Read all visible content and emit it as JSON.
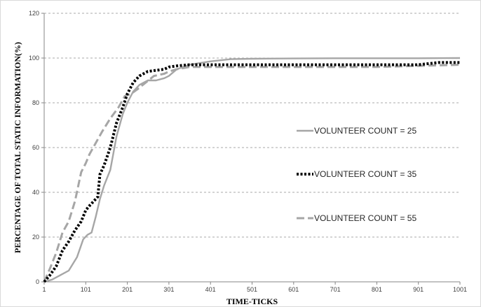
{
  "chart_data": {
    "type": "line",
    "xlabel": "TIME-TICKS",
    "ylabel": "PERCENTAGE OF TOTAL STATIC INFORMATION(%)",
    "xlim": [
      1,
      1001
    ],
    "ylim": [
      0,
      120
    ],
    "x_ticks": [
      1,
      101,
      201,
      301,
      401,
      501,
      601,
      701,
      801,
      901,
      1001
    ],
    "y_ticks": [
      0,
      20,
      40,
      60,
      80,
      100,
      120
    ],
    "grid": "horizontal dashed",
    "legend_placement": "right",
    "series": [
      {
        "name": "VOLUNTEER COUNT = 25",
        "style": "solid",
        "color": "#a6a6a6",
        "x": [
          1,
          20,
          40,
          60,
          80,
          95,
          105,
          115,
          125,
          135,
          145,
          160,
          175,
          190,
          201,
          215,
          230,
          250,
          270,
          290,
          301,
          320,
          350,
          400,
          450,
          500,
          600,
          700,
          800,
          900,
          1001
        ],
        "y": [
          0,
          1,
          3,
          5,
          11,
          19,
          21,
          22,
          29,
          37,
          43,
          50,
          65,
          75,
          80,
          85,
          88,
          90,
          90,
          91,
          92,
          95,
          97,
          98.5,
          99.5,
          99.7,
          99.8,
          99.9,
          99.9,
          99.9,
          100
        ]
      },
      {
        "name": "VOLUNTEER COUNT = 35",
        "style": "dotted",
        "color": "#000000",
        "x": [
          1,
          15,
          30,
          45,
          60,
          75,
          90,
          101,
          110,
          120,
          130,
          135,
          145,
          160,
          175,
          190,
          201,
          215,
          230,
          250,
          270,
          290,
          301,
          320,
          350,
          400,
          450,
          500,
          600,
          700,
          800,
          900,
          950,
          1001
        ],
        "y": [
          0,
          3,
          7,
          14,
          18,
          23,
          27,
          32,
          34,
          36,
          38,
          48,
          52,
          60,
          71,
          78,
          84,
          89,
          92,
          94,
          94.5,
          95,
          96,
          96.5,
          97,
          97,
          97,
          97,
          97,
          97,
          97,
          97,
          98,
          98
        ]
      },
      {
        "name": "VOLUNTEER COUNT = 55",
        "style": "dashed",
        "color": "#a6a6a6",
        "x": [
          1,
          15,
          30,
          45,
          60,
          75,
          90,
          101,
          110,
          125,
          140,
          160,
          180,
          195,
          210,
          225,
          245,
          265,
          290,
          301,
          320,
          350,
          400,
          450,
          500,
          600,
          700,
          800,
          900,
          1001
        ],
        "y": [
          0,
          6,
          13,
          22,
          27,
          36,
          49,
          53,
          57,
          62,
          67,
          73,
          78,
          83,
          84,
          86,
          89,
          92,
          93,
          94,
          95,
          96,
          96,
          96,
          96,
          96,
          96,
          96,
          96.5,
          97
        ]
      }
    ]
  }
}
